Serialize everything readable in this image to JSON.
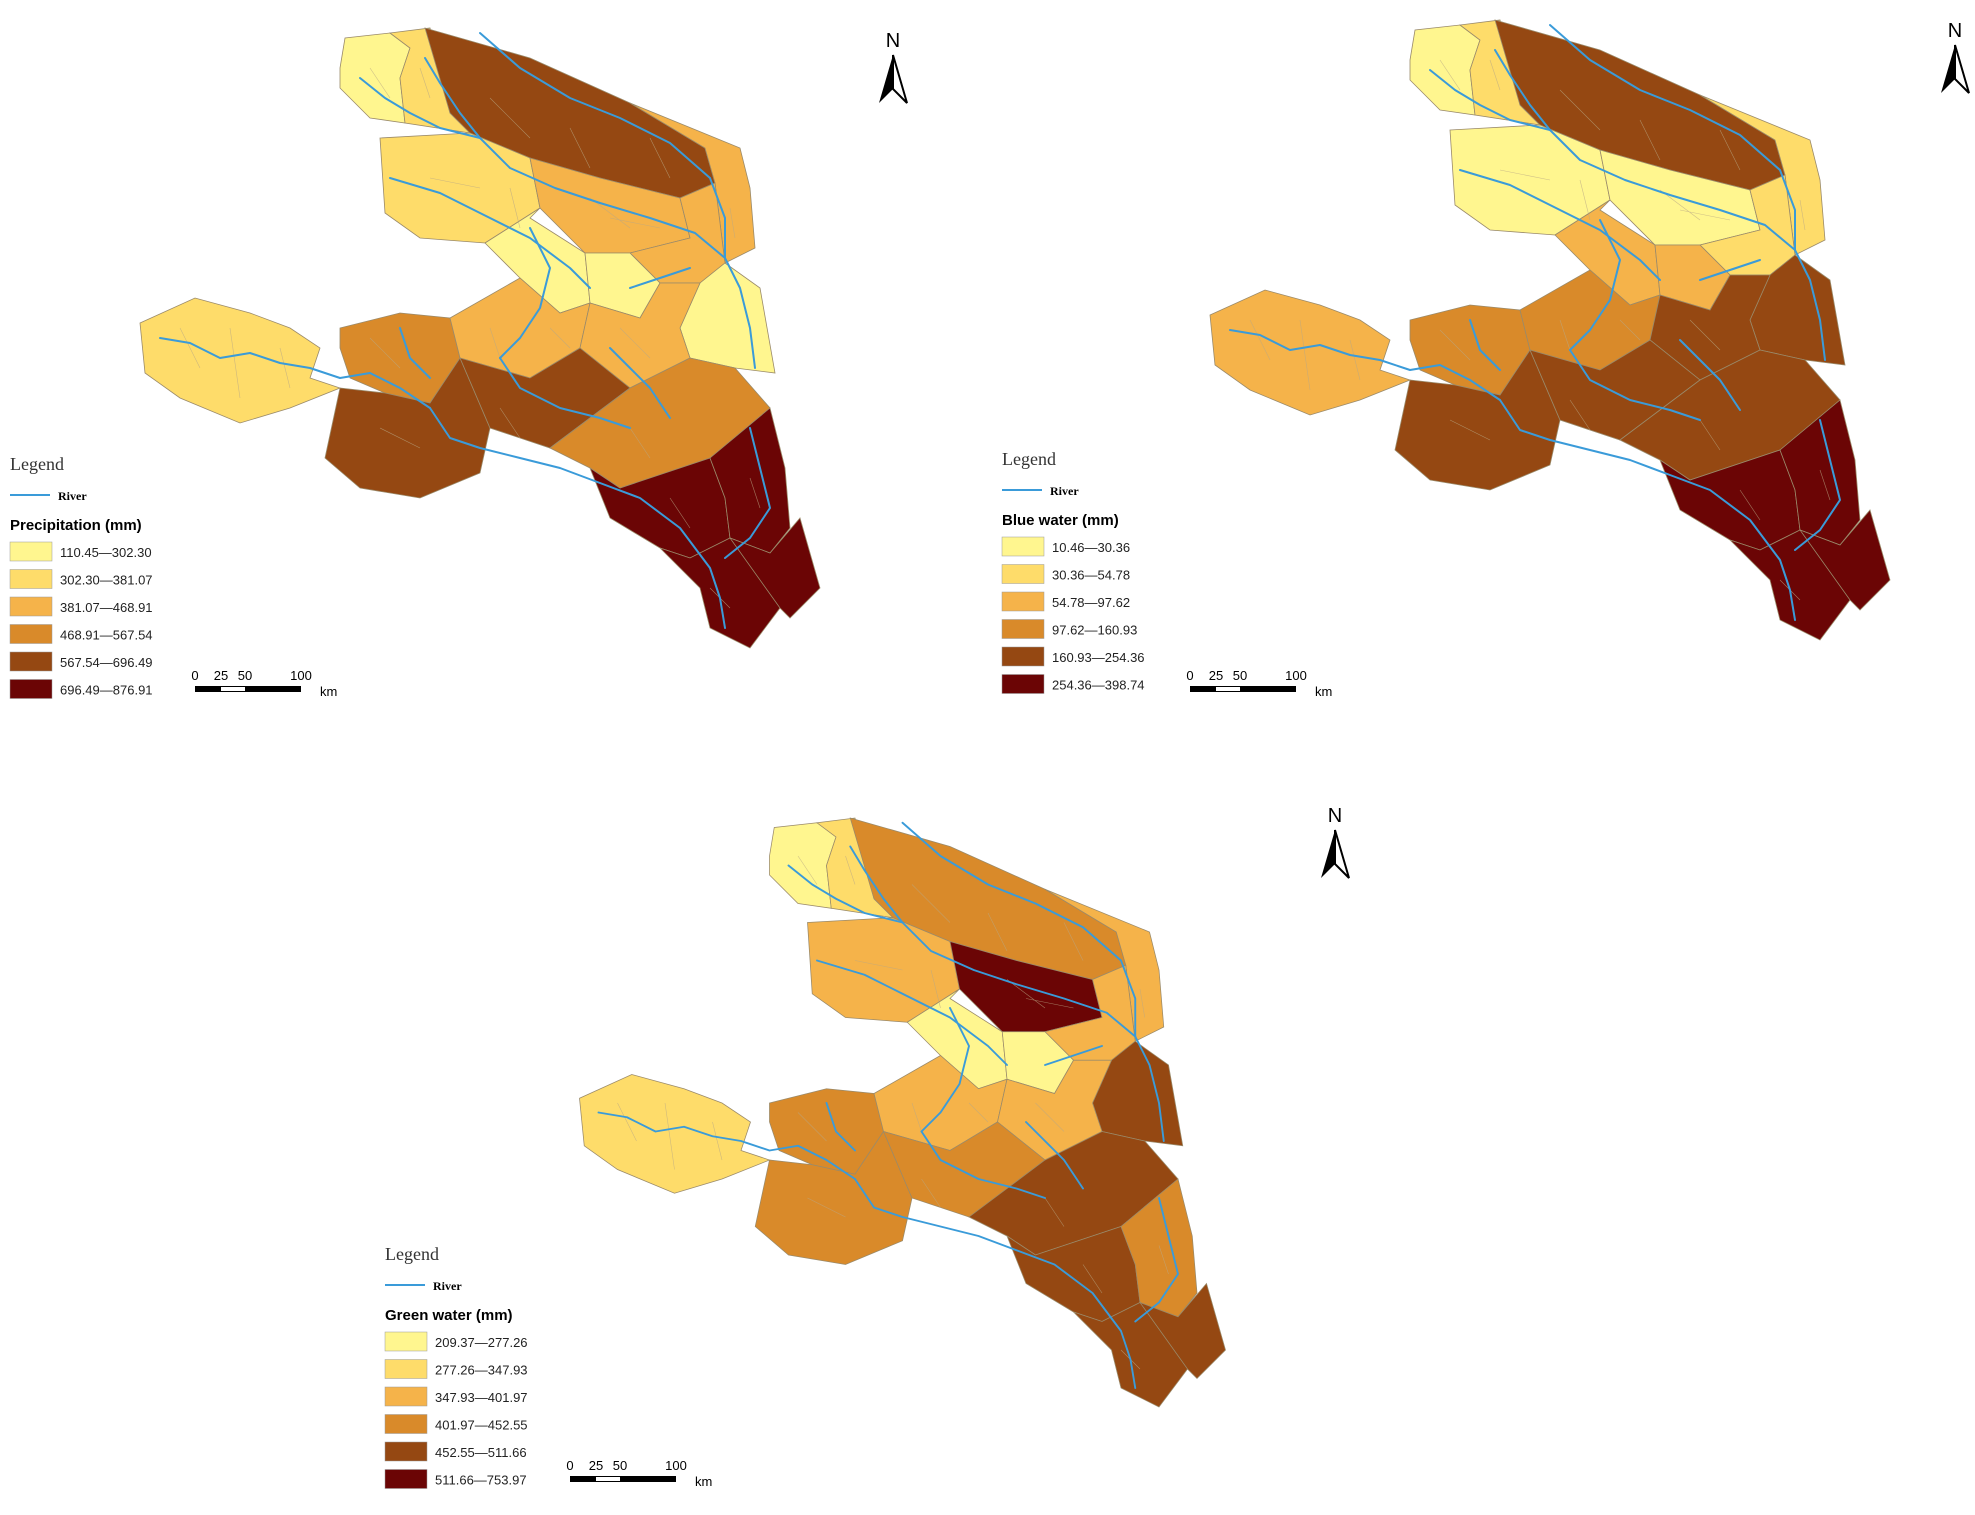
{
  "maps": [
    {
      "id": "precipitation",
      "legend_heading": "Legend",
      "river_label": "River",
      "variable_title": "Precipitation (mm)",
      "classes": [
        "110.45—302.30",
        "302.30—381.07",
        "381.07—468.91",
        "468.91—567.54",
        "567.54—696.49",
        "696.49—876.91"
      ],
      "scale": {
        "ticks": [
          "0",
          "25",
          "50",
          "100"
        ],
        "unit": "km"
      },
      "north": "N"
    },
    {
      "id": "blue-water",
      "legend_heading": "Legend",
      "river_label": "River",
      "variable_title": "Blue water (mm)",
      "classes": [
        "10.46—30.36",
        "30.36—54.78",
        "54.78—97.62",
        "97.62—160.93",
        "160.93—254.36",
        "254.36—398.74"
      ],
      "scale": {
        "ticks": [
          "0",
          "25",
          "50",
          "100"
        ],
        "unit": "km"
      },
      "north": "N"
    },
    {
      "id": "green-water",
      "legend_heading": "Legend",
      "river_label": "River",
      "variable_title": "Green water (mm)",
      "classes": [
        "209.37—277.26",
        "277.26—347.93",
        "347.93—401.97",
        "401.97—452.55",
        "452.55—511.66",
        "511.66—753.97"
      ],
      "scale": {
        "ticks": [
          "0",
          "25",
          "50",
          "100"
        ],
        "unit": "km"
      },
      "north": "N"
    }
  ],
  "palette": [
    "#fff68f",
    "#fedc6a",
    "#f5b34a",
    "#d98a2a",
    "#954812",
    "#6b0505"
  ],
  "river_color": "#3a9bd9"
}
